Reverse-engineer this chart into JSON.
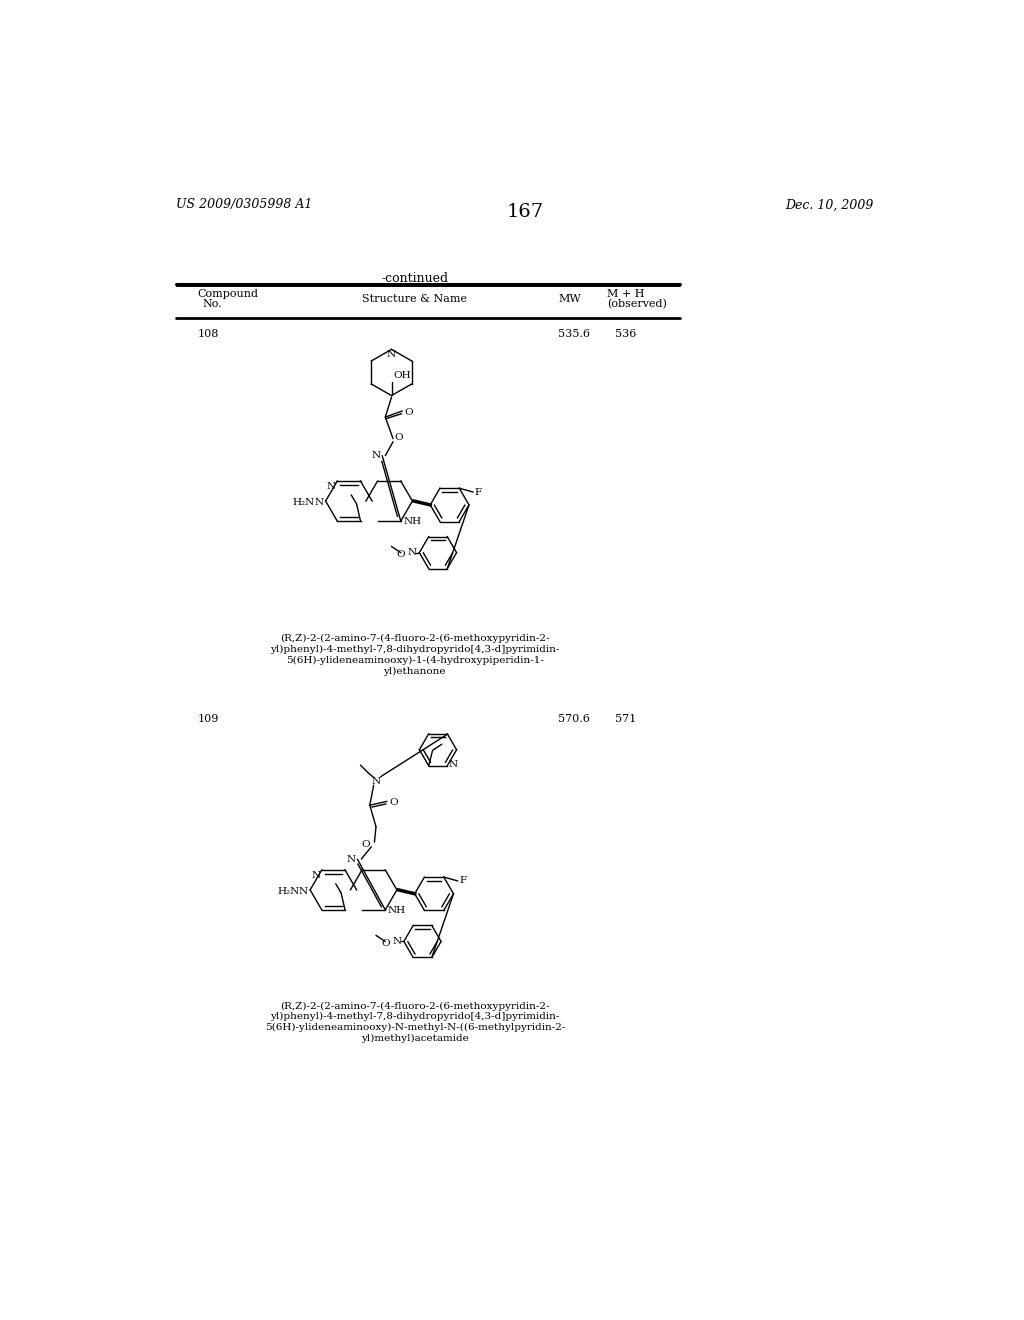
{
  "page_number": "167",
  "header_left": "US 2009/0305998 A1",
  "header_right": "Dec. 10, 2009",
  "continued_label": "-continued",
  "col_compound": "Compound\nNo.",
  "col_structure": "Structure & Name",
  "col_mw": "MW",
  "col_mh": "M + H\n(observed)",
  "compounds": [
    {
      "no": "108",
      "mw": "535.6",
      "mh": "536",
      "name_lines": [
        "(R,Z)-2-(2-amino-7-(4-fluoro-2-(6-methoxypyridin-2-",
        "yl)phenyl)-4-methyl-7,8-dihydropyrido[4,3-d]pyrimidin-",
        "5(6H)-ylideneaminooxy)-1-(4-hydroxypiperidin-1-",
        "yl)ethanone"
      ]
    },
    {
      "no": "109",
      "mw": "570.6",
      "mh": "571",
      "name_lines": [
        "(R,Z)-2-(2-amino-7-(4-fluoro-2-(6-methoxypyridin-2-",
        "yl)phenyl)-4-methyl-7,8-dihydropyrido[4,3-d]pyrimidin-",
        "5(6H)-ylideneaminooxy)-N-methyl-N-((6-methylpyridin-2-",
        "yl)methyl)acetamide"
      ]
    }
  ],
  "bg_color": "#ffffff",
  "text_color": "#000000"
}
